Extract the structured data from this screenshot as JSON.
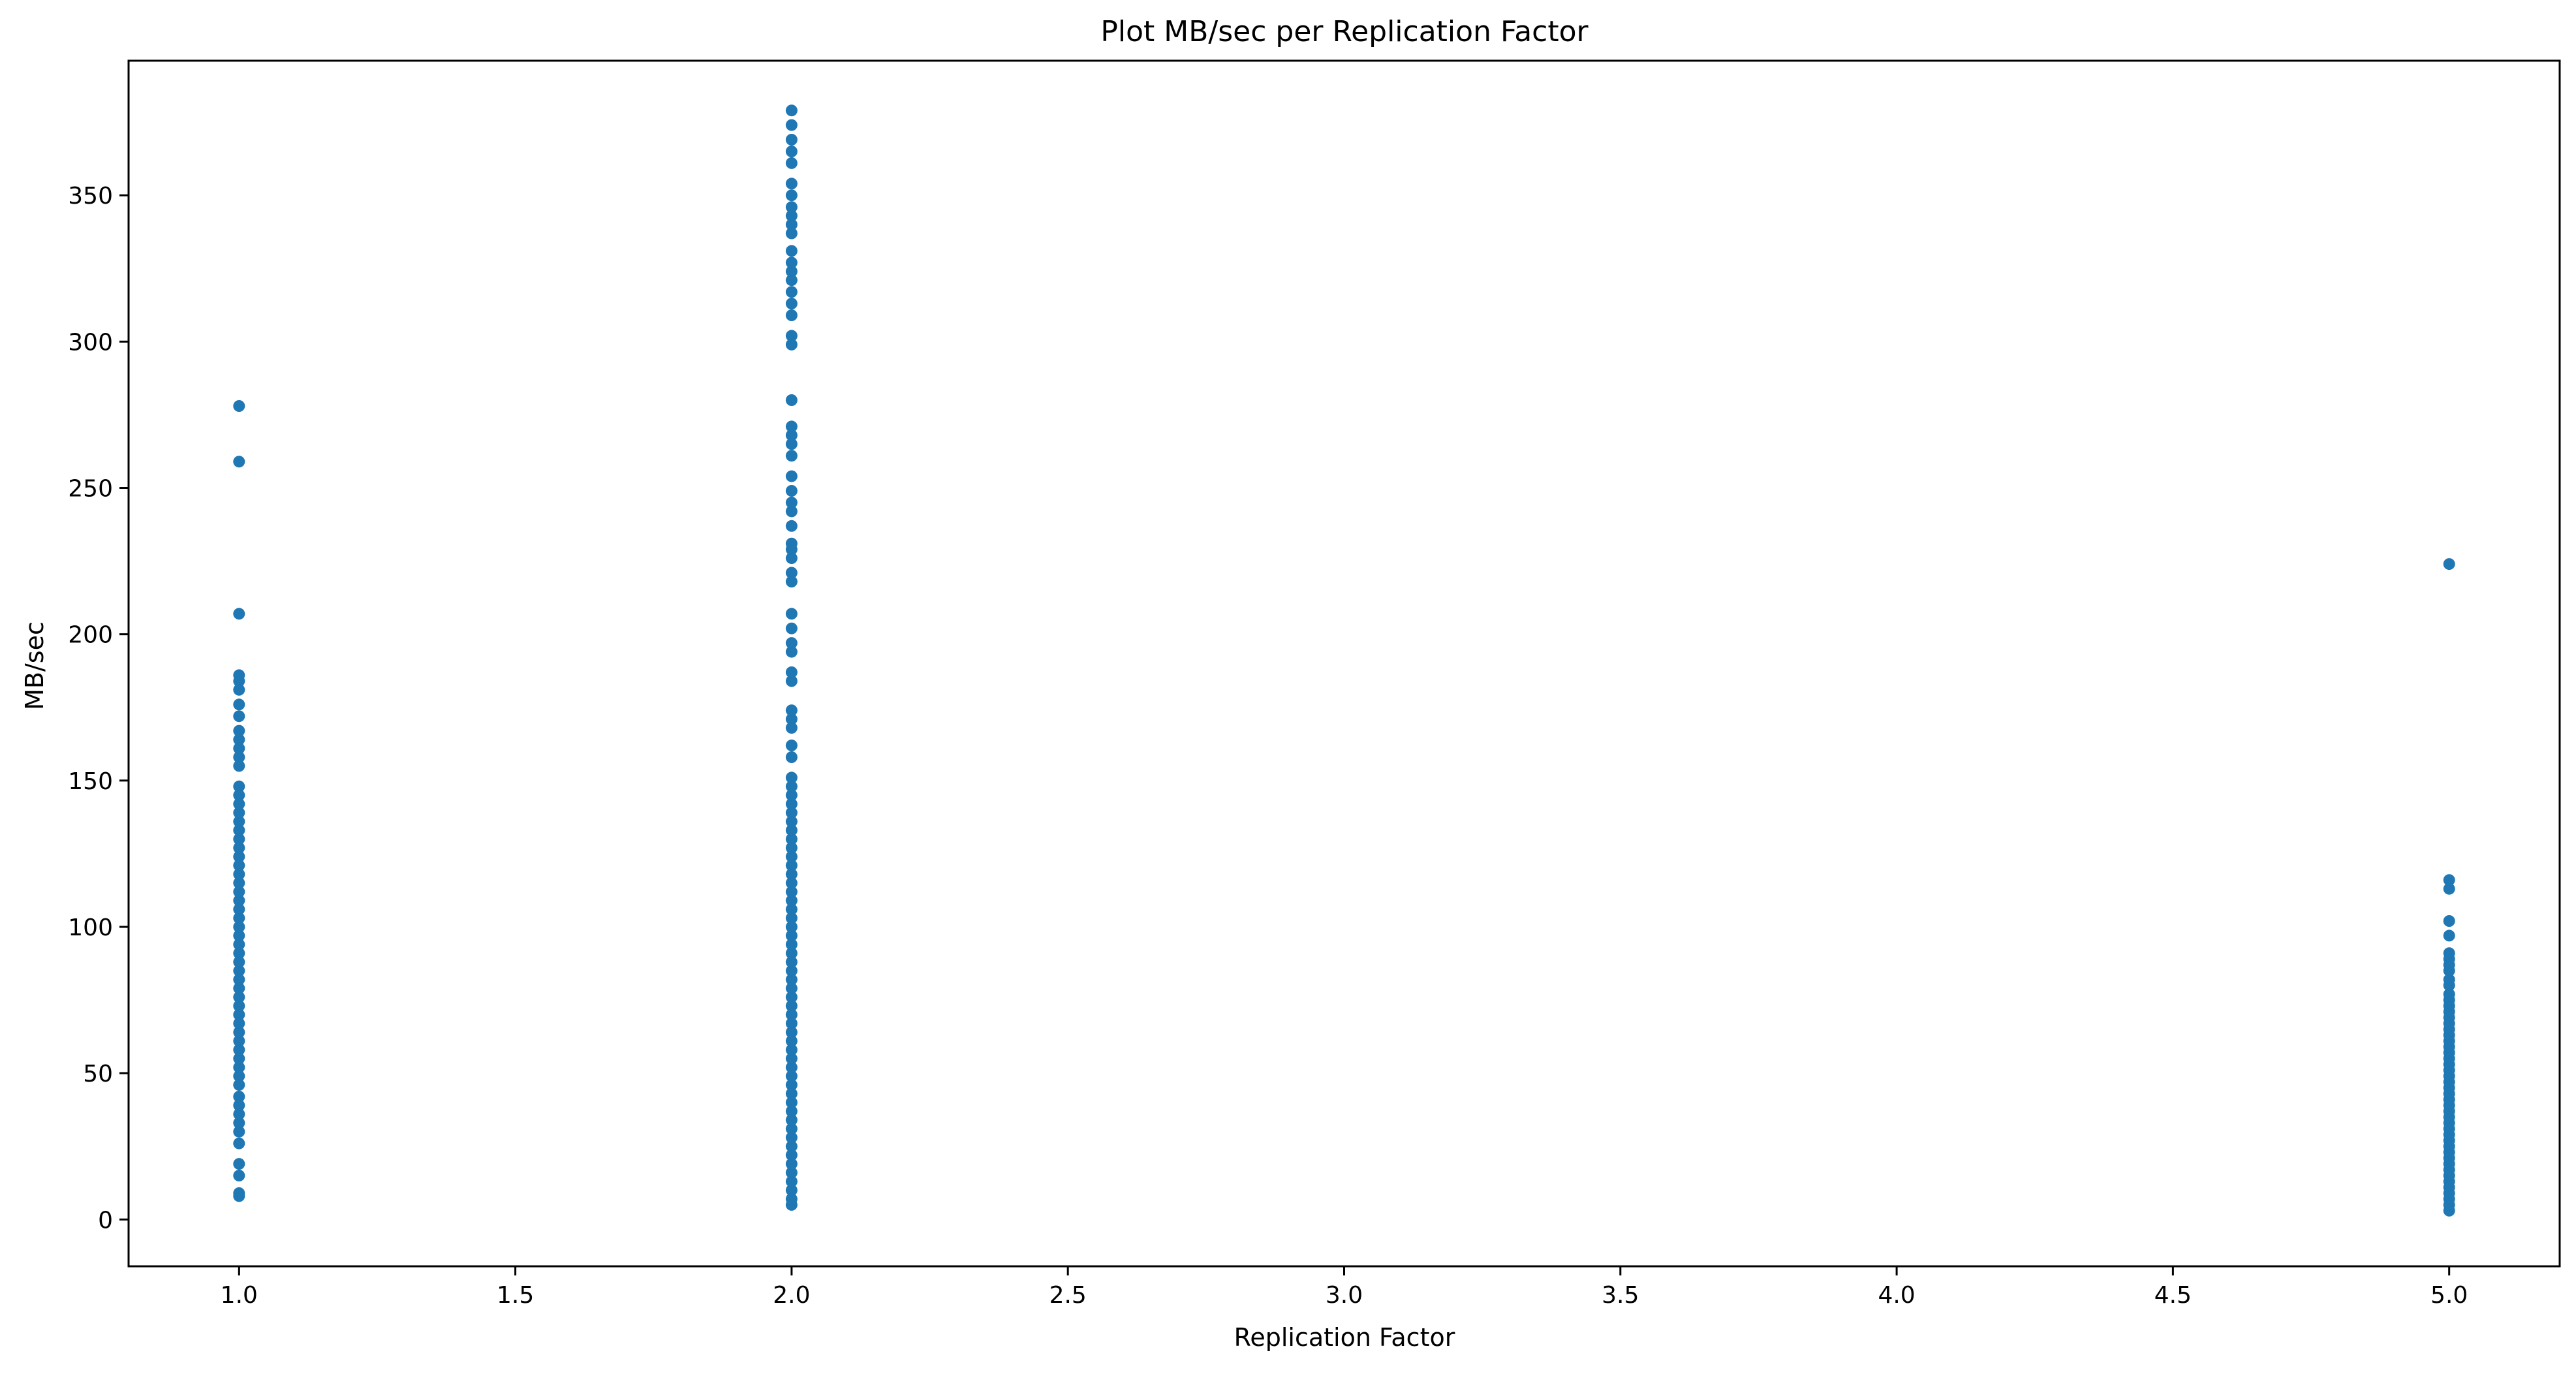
{
  "chart_data": {
    "type": "scatter",
    "title": "Plot MB/sec per Replication Factor",
    "xlabel": "Replication Factor",
    "ylabel": "MB/sec",
    "xlim": [
      0.8,
      5.2
    ],
    "ylim": [
      -16,
      396
    ],
    "xticks": [
      1.0,
      1.5,
      2.0,
      2.5,
      3.0,
      3.5,
      4.0,
      4.5,
      5.0
    ],
    "xtick_labels": [
      "1.0",
      "1.5",
      "2.0",
      "2.5",
      "3.0",
      "3.5",
      "4.0",
      "4.5",
      "5.0"
    ],
    "yticks": [
      0,
      50,
      100,
      150,
      200,
      250,
      300,
      350
    ],
    "ytick_labels": [
      "0",
      "50",
      "100",
      "150",
      "200",
      "250",
      "300",
      "350"
    ],
    "grid": false,
    "marker_color": "#1f77b4",
    "series": [
      {
        "x": 1.0,
        "y": [
          8,
          9,
          15,
          19,
          26,
          30,
          33,
          36,
          39,
          42,
          46,
          49,
          52,
          55,
          58,
          61,
          64,
          67,
          70,
          73,
          76,
          79,
          82,
          85,
          88,
          91,
          94,
          97,
          100,
          103,
          106,
          109,
          112,
          115,
          118,
          121,
          124,
          127,
          130,
          133,
          136,
          139,
          142,
          145,
          148,
          155,
          158,
          161,
          164,
          167,
          172,
          176,
          181,
          184,
          186,
          207,
          259,
          278
        ]
      },
      {
        "x": 2.0,
        "y": [
          5,
          7,
          10,
          13,
          16,
          19,
          22,
          25,
          28,
          31,
          34,
          37,
          40,
          43,
          46,
          49,
          52,
          55,
          58,
          61,
          64,
          67,
          70,
          73,
          76,
          79,
          82,
          85,
          88,
          91,
          94,
          97,
          100,
          103,
          106,
          109,
          112,
          115,
          118,
          121,
          124,
          127,
          130,
          133,
          136,
          139,
          142,
          145,
          148,
          151,
          158,
          162,
          168,
          171,
          174,
          184,
          187,
          194,
          197,
          202,
          207,
          218,
          221,
          226,
          229,
          231,
          237,
          242,
          245,
          249,
          254,
          261,
          265,
          268,
          271,
          280,
          299,
          302,
          309,
          313,
          317,
          321,
          324,
          327,
          331,
          337,
          340,
          343,
          346,
          350,
          354,
          361,
          365,
          369,
          374,
          379
        ]
      },
      {
        "x": 5.0,
        "y": [
          3,
          5,
          7,
          9,
          11,
          13,
          15,
          17,
          19,
          21,
          23,
          25,
          27,
          29,
          31,
          33,
          35,
          37,
          39,
          41,
          43,
          45,
          47,
          49,
          51,
          53,
          55,
          57,
          59,
          61,
          63,
          65,
          67,
          69,
          71,
          73,
          75,
          77,
          80,
          82,
          85,
          87,
          89,
          91,
          97,
          102,
          113,
          116,
          224
        ]
      }
    ]
  }
}
